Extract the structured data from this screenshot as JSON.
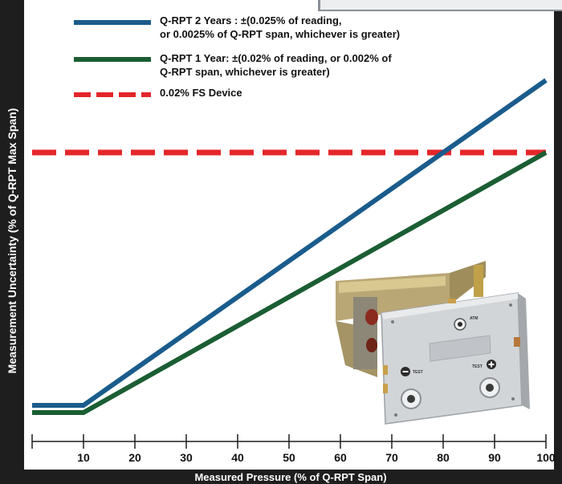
{
  "colors": {
    "series_2yr": "#1a5c8c",
    "series_1yr": "#1b5e33",
    "fs_device": "#e4262a",
    "frame": "#1e1e1e",
    "panel_corner": "#eceeef"
  },
  "product_image": {
    "alt_icon": "q-rpt-module-photo",
    "labels": [
      "ATM",
      "TEST",
      "TEST"
    ]
  },
  "chart_data": {
    "type": "line",
    "xlabel": "Measured Pressure (% of Q-RPT Span)",
    "ylabel": "Measurement Uncertainty (% of Q-RPT Max Span)",
    "xlim": [
      0,
      100
    ],
    "ylim": [
      0,
      0.03
    ],
    "x_ticks": [
      10,
      20,
      30,
      40,
      50,
      60,
      70,
      80,
      90,
      100
    ],
    "x_tick_labels": [
      "10",
      "20",
      "30",
      "40",
      "50",
      "60",
      "70",
      "80",
      "90",
      "100"
    ],
    "y_tick_labels": [],
    "grid": false,
    "legend_placement": "top",
    "series": [
      {
        "name": "Q-RPT 2 Years",
        "legend_lines": [
          "Q-RPT 2 Years :  ±(0.025% of reading,",
          "or 0.0025% of Q-RPT span, whichever is greater)"
        ],
        "style": "solid",
        "color": "#1a5c8c",
        "x": [
          0,
          10,
          100
        ],
        "y": [
          0.0025,
          0.0025,
          0.025
        ]
      },
      {
        "name": "Q-RPT 1 Year",
        "legend_lines": [
          "Q-RPT 1 Year:  ±(0.02% of reading, or 0.002% of",
          "Q-RPT span, whichever is greater)"
        ],
        "style": "solid",
        "color": "#1b5e33",
        "x": [
          0,
          10,
          100
        ],
        "y": [
          0.002,
          0.002,
          0.02
        ]
      },
      {
        "name": "0.02% FS Device",
        "legend_lines": [
          "0.02% FS Device"
        ],
        "style": "dashed",
        "color": "#e4262a",
        "x": [
          0,
          100
        ],
        "y": [
          0.02,
          0.02
        ]
      }
    ]
  }
}
